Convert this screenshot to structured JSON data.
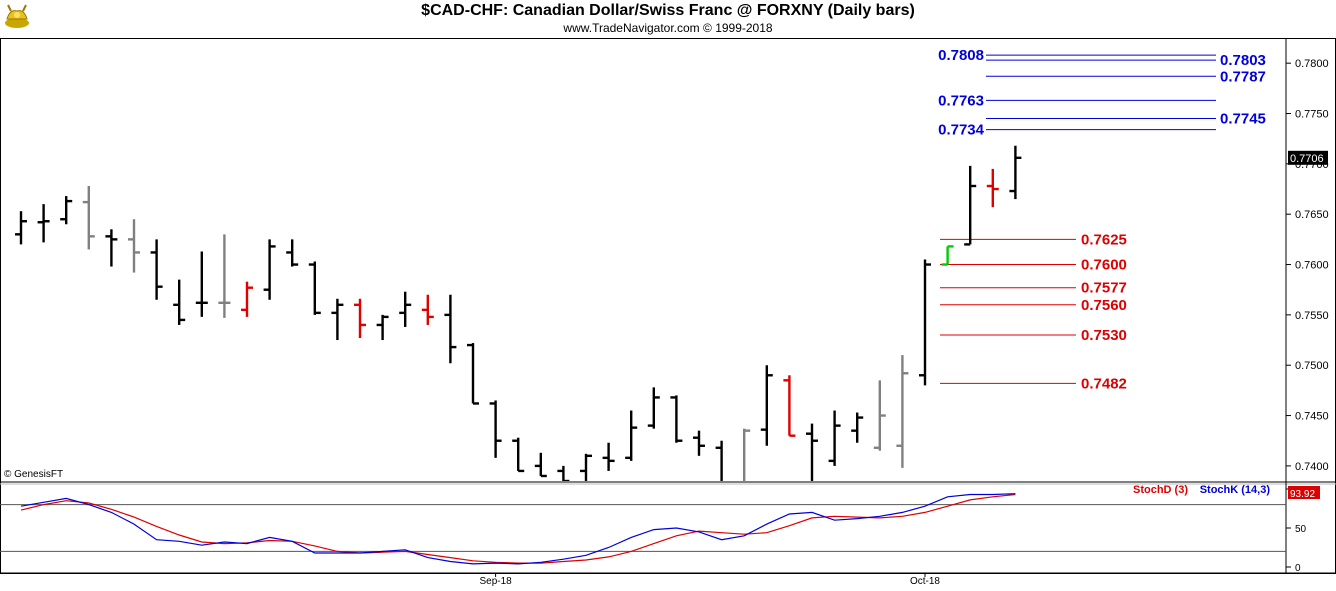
{
  "header": {
    "title": "$CAD-CHF:  Canadian Dollar/Swiss Franc @ FORXNY  (Daily bars)",
    "subtitle": "www.TradeNavigator.com © 1999-2018",
    "copyright": "© GenesisFT",
    "logo": "golden-bull-logo"
  },
  "colors": {
    "up": "#000000",
    "neutral": "#808080",
    "down": "#e00000",
    "highlight": "#00cc00",
    "blue": "#0000dd",
    "red": "#dd0000",
    "stochD": "#dd0000",
    "stochK": "#0000dd"
  },
  "chart_data": [
    {
      "type": "bar",
      "subtype": "ohlc",
      "ylim": [
        0.7385,
        0.7825
      ],
      "yticks": [
        "0.7800",
        "0.7750",
        "0.7700",
        "0.7650",
        "0.7600",
        "0.7550",
        "0.7500",
        "0.7450",
        "0.7400"
      ],
      "last_price": "0.7706",
      "xticks": [
        {
          "label": "Sep-18",
          "index": 21
        },
        {
          "label": "Oct-18",
          "index": 40
        }
      ],
      "bars": [
        {
          "o": 0.763,
          "h": 0.7653,
          "l": 0.762,
          "c": 0.7643,
          "color": "up"
        },
        {
          "o": 0.7642,
          "h": 0.766,
          "l": 0.7622,
          "c": 0.7643,
          "color": "up"
        },
        {
          "o": 0.7645,
          "h": 0.7668,
          "l": 0.764,
          "c": 0.7663,
          "color": "up"
        },
        {
          "o": 0.7662,
          "h": 0.7678,
          "l": 0.7615,
          "c": 0.7628,
          "color": "neutral"
        },
        {
          "o": 0.7628,
          "h": 0.7635,
          "l": 0.7598,
          "c": 0.7625,
          "color": "up"
        },
        {
          "o": 0.7625,
          "h": 0.7645,
          "l": 0.7592,
          "c": 0.7612,
          "color": "neutral"
        },
        {
          "o": 0.7612,
          "h": 0.7625,
          "l": 0.7565,
          "c": 0.7578,
          "color": "up"
        },
        {
          "o": 0.756,
          "h": 0.7585,
          "l": 0.754,
          "c": 0.7545,
          "color": "up"
        },
        {
          "o": 0.7562,
          "h": 0.7613,
          "l": 0.7548,
          "c": 0.7562,
          "color": "up"
        },
        {
          "o": 0.7562,
          "h": 0.763,
          "l": 0.7547,
          "c": 0.7562,
          "color": "neutral"
        },
        {
          "o": 0.7555,
          "h": 0.7583,
          "l": 0.7548,
          "c": 0.7577,
          "color": "down"
        },
        {
          "o": 0.7575,
          "h": 0.7625,
          "l": 0.7565,
          "c": 0.7618,
          "color": "up"
        },
        {
          "o": 0.7612,
          "h": 0.7625,
          "l": 0.7598,
          "c": 0.76,
          "color": "up"
        },
        {
          "o": 0.76,
          "h": 0.7603,
          "l": 0.755,
          "c": 0.7552,
          "color": "up"
        },
        {
          "o": 0.7552,
          "h": 0.7566,
          "l": 0.7525,
          "c": 0.756,
          "color": "up"
        },
        {
          "o": 0.756,
          "h": 0.7566,
          "l": 0.7527,
          "c": 0.754,
          "color": "down"
        },
        {
          "o": 0.754,
          "h": 0.755,
          "l": 0.7525,
          "c": 0.7548,
          "color": "up"
        },
        {
          "o": 0.7552,
          "h": 0.7573,
          "l": 0.7538,
          "c": 0.756,
          "color": "up"
        },
        {
          "o": 0.7555,
          "h": 0.757,
          "l": 0.754,
          "c": 0.7548,
          "color": "down"
        },
        {
          "o": 0.755,
          "h": 0.757,
          "l": 0.7502,
          "c": 0.7518,
          "color": "up"
        },
        {
          "o": 0.752,
          "h": 0.7522,
          "l": 0.7462,
          "c": 0.7462,
          "color": "up"
        },
        {
          "o": 0.7462,
          "h": 0.7465,
          "l": 0.7408,
          "c": 0.7425,
          "color": "up"
        },
        {
          "o": 0.7425,
          "h": 0.7428,
          "l": 0.7395,
          "c": 0.7395,
          "color": "up"
        },
        {
          "o": 0.74,
          "h": 0.7413,
          "l": 0.739,
          "c": 0.739,
          "color": "up"
        },
        {
          "o": 0.7395,
          "h": 0.74,
          "l": 0.738,
          "c": 0.7385,
          "color": "up"
        },
        {
          "o": 0.7395,
          "h": 0.7412,
          "l": 0.7385,
          "c": 0.741,
          "color": "up"
        },
        {
          "o": 0.7408,
          "h": 0.7423,
          "l": 0.7395,
          "c": 0.7405,
          "color": "up"
        },
        {
          "o": 0.7408,
          "h": 0.7455,
          "l": 0.7405,
          "c": 0.7438,
          "color": "up"
        },
        {
          "o": 0.744,
          "h": 0.7478,
          "l": 0.7437,
          "c": 0.7468,
          "color": "up"
        },
        {
          "o": 0.7468,
          "h": 0.747,
          "l": 0.7423,
          "c": 0.7425,
          "color": "up"
        },
        {
          "o": 0.7428,
          "h": 0.7435,
          "l": 0.741,
          "c": 0.742,
          "color": "up"
        },
        {
          "o": 0.7418,
          "h": 0.7425,
          "l": 0.7382,
          "c": 0.7382,
          "color": "up"
        },
        {
          "o": 0.7382,
          "h": 0.7437,
          "l": 0.7382,
          "c": 0.7435,
          "color": "neutral"
        },
        {
          "o": 0.7436,
          "h": 0.75,
          "l": 0.742,
          "c": 0.749,
          "color": "up"
        },
        {
          "o": 0.7485,
          "h": 0.749,
          "l": 0.743,
          "c": 0.743,
          "color": "down"
        },
        {
          "o": 0.7432,
          "h": 0.7442,
          "l": 0.7385,
          "c": 0.7425,
          "color": "up"
        },
        {
          "o": 0.7405,
          "h": 0.7455,
          "l": 0.74,
          "c": 0.744,
          "color": "up"
        },
        {
          "o": 0.7435,
          "h": 0.7453,
          "l": 0.7423,
          "c": 0.7448,
          "color": "up"
        },
        {
          "o": 0.7418,
          "h": 0.7485,
          "l": 0.7415,
          "c": 0.745,
          "color": "neutral"
        },
        {
          "o": 0.742,
          "h": 0.751,
          "l": 0.7398,
          "c": 0.7492,
          "color": "neutral"
        },
        {
          "o": 0.749,
          "h": 0.7605,
          "l": 0.748,
          "c": 0.76,
          "color": "up"
        },
        {
          "o": 0.76,
          "h": 0.7618,
          "l": 0.76,
          "c": 0.7618,
          "color": "highlight"
        },
        {
          "o": 0.762,
          "h": 0.7698,
          "l": 0.762,
          "c": 0.7678,
          "color": "up"
        },
        {
          "o": 0.7678,
          "h": 0.7695,
          "l": 0.7657,
          "c": 0.7675,
          "color": "down"
        },
        {
          "o": 0.7673,
          "h": 0.7718,
          "l": 0.7665,
          "c": 0.7706,
          "color": "up"
        }
      ],
      "levels": [
        {
          "label": "0.7808",
          "value": 0.7808,
          "color": "blue",
          "side": "left"
        },
        {
          "label": "0.7803",
          "value": 0.7803,
          "color": "blue",
          "side": "right"
        },
        {
          "label": "0.7787",
          "value": 0.7787,
          "color": "blue",
          "side": "right"
        },
        {
          "label": "0.7763",
          "value": 0.7763,
          "color": "blue",
          "side": "left"
        },
        {
          "label": "0.7745",
          "value": 0.7745,
          "color": "blue",
          "side": "right"
        },
        {
          "label": "0.7734",
          "value": 0.7734,
          "color": "blue",
          "side": "left"
        },
        {
          "label": "0.7625",
          "value": 0.7625,
          "color": "red",
          "side": "right"
        },
        {
          "label": "0.7600",
          "value": 0.76,
          "color": "red",
          "side": "right"
        },
        {
          "label": "0.7577",
          "value": 0.7577,
          "color": "red",
          "side": "right"
        },
        {
          "label": "0.7560",
          "value": 0.756,
          "color": "red",
          "side": "right"
        },
        {
          "label": "0.7530",
          "value": 0.753,
          "color": "red",
          "side": "right"
        },
        {
          "label": "0.7482",
          "value": 0.7482,
          "color": "red",
          "side": "right"
        }
      ]
    },
    {
      "type": "line",
      "title": "",
      "ylim": [
        0,
        100
      ],
      "yticks": [
        "100",
        "50",
        "0"
      ],
      "hlines": [
        80,
        20
      ],
      "last_value": "93.92",
      "series": [
        {
          "name": "StochD (3)",
          "color": "stochD",
          "values": [
            73,
            80,
            85,
            82,
            74,
            64,
            52,
            41,
            32,
            30,
            31,
            34,
            33,
            27,
            20,
            18,
            19,
            20,
            16,
            12,
            8,
            6,
            5,
            5,
            7,
            9,
            13,
            20,
            30,
            40,
            46,
            44,
            42,
            44,
            53,
            63,
            65,
            64,
            63,
            65,
            70,
            78,
            86,
            90,
            93
          ]
        },
        {
          "name": "StochK (14,3)",
          "color": "stochK",
          "values": [
            78,
            83,
            88,
            80,
            70,
            55,
            35,
            33,
            28,
            32,
            30,
            38,
            33,
            18,
            18,
            18,
            20,
            22,
            12,
            7,
            4,
            5,
            4,
            6,
            10,
            15,
            25,
            38,
            48,
            50,
            45,
            35,
            40,
            55,
            68,
            70,
            60,
            62,
            65,
            70,
            78,
            90,
            93,
            93,
            94
          ]
        }
      ]
    }
  ]
}
